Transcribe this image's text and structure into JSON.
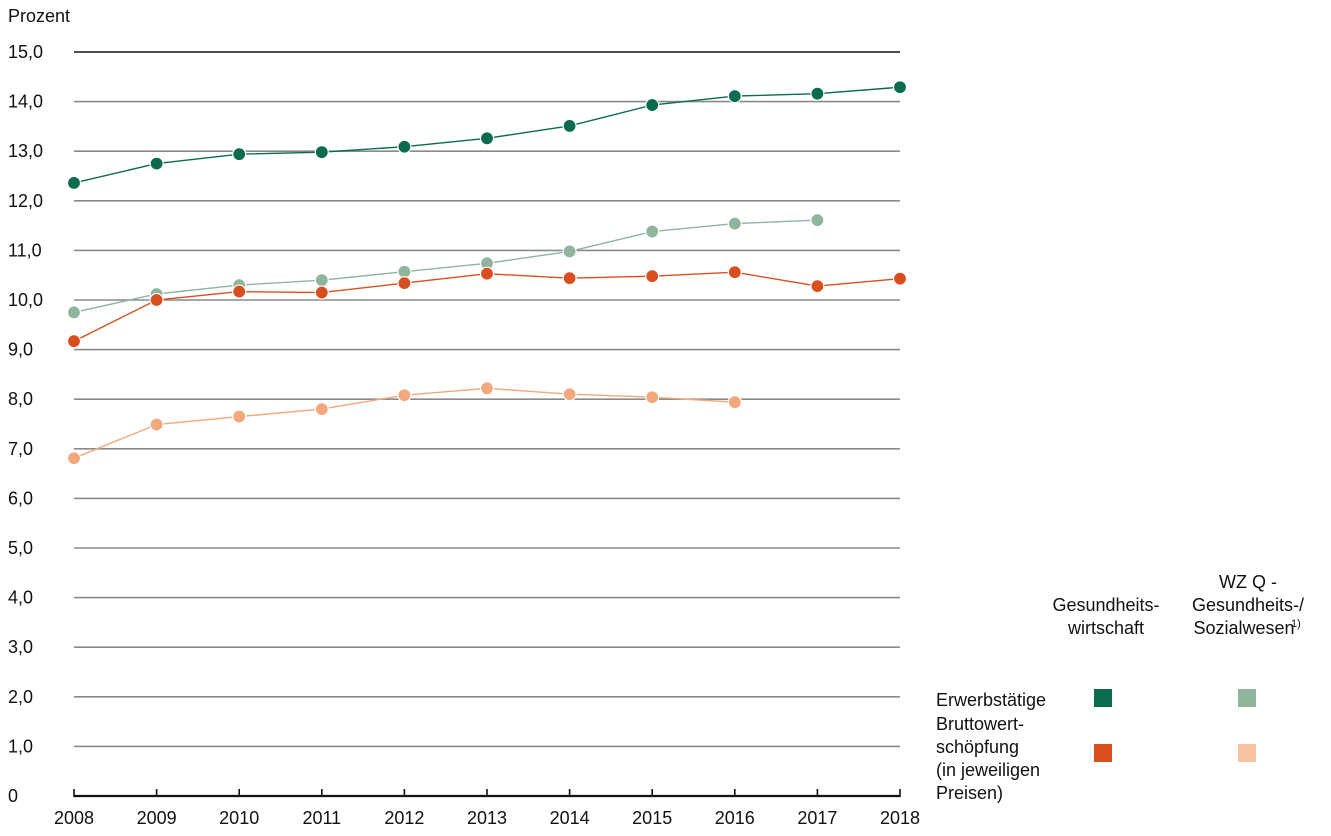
{
  "colors": {
    "erwerb_gw": "#0b6b4f",
    "erwerb_wzq": "#8fb59f",
    "bws_gw": "#d94e1f",
    "bws_wzq": "#f3a77c",
    "legend_bws_wzq": "#f7c3a3",
    "grid": "#8a8a8a",
    "axis": "#111111",
    "text": "#111111"
  },
  "chart_data": {
    "type": "line",
    "ylabel": "Prozent",
    "xlabel": "",
    "title": "",
    "ylim": [
      0,
      15
    ],
    "y_ticks": [
      "0",
      "1,0",
      "2,0",
      "3,0",
      "4,0",
      "5,0",
      "6,0",
      "7,0",
      "8,0",
      "9,0",
      "10,0",
      "11,0",
      "12,0",
      "13,0",
      "14,0",
      "15,0"
    ],
    "x": [
      "2008",
      "2009",
      "2010",
      "2011",
      "2012",
      "2013",
      "2014",
      "2015",
      "2016",
      "2017",
      "2018"
    ],
    "grid": true,
    "legend_position": "right",
    "series": [
      {
        "name": "Erwerbstätige – Gesundheitswirtschaft",
        "color_key": "erwerb_gw",
        "values": [
          12.36,
          12.75,
          12.94,
          12.98,
          13.09,
          13.26,
          13.51,
          13.93,
          14.11,
          14.16,
          14.29
        ]
      },
      {
        "name": "Erwerbstätige – WZ Q - Gesundheits-/Sozialwesen",
        "color_key": "erwerb_wzq",
        "values": [
          9.75,
          10.12,
          10.3,
          10.4,
          10.57,
          10.74,
          10.98,
          11.38,
          11.54,
          11.61,
          null
        ]
      },
      {
        "name": "Bruttowertschöpfung (in jeweiligen Preisen) – Gesundheitswirtschaft",
        "color_key": "bws_gw",
        "values": [
          9.17,
          10.0,
          10.17,
          10.15,
          10.34,
          10.53,
          10.44,
          10.48,
          10.56,
          10.28,
          10.43
        ]
      },
      {
        "name": "Bruttowertschöpfung (in jeweiligen Preisen) – WZ Q - Gesundheits-/Sozialwesen",
        "color_key": "bws_wzq",
        "values": [
          6.81,
          7.49,
          7.65,
          7.8,
          8.08,
          8.22,
          8.1,
          8.04,
          7.94,
          null,
          null
        ]
      }
    ]
  },
  "legend": {
    "col1_header_line1": "Gesundheits-",
    "col1_header_line2": "wirtschaft",
    "col2_header_line1": "WZ Q -",
    "col2_header_line2": "Gesundheits-/",
    "col2_header_line3": "Sozialwesen",
    "col2_header_sup": "1)",
    "row1_label": "Erwerbstätige",
    "row2_label_line1": "Bruttowert-",
    "row2_label_line2": "schöpfung",
    "row2_label_line3": "(in jeweiligen",
    "row2_label_line4": "Preisen)"
  }
}
